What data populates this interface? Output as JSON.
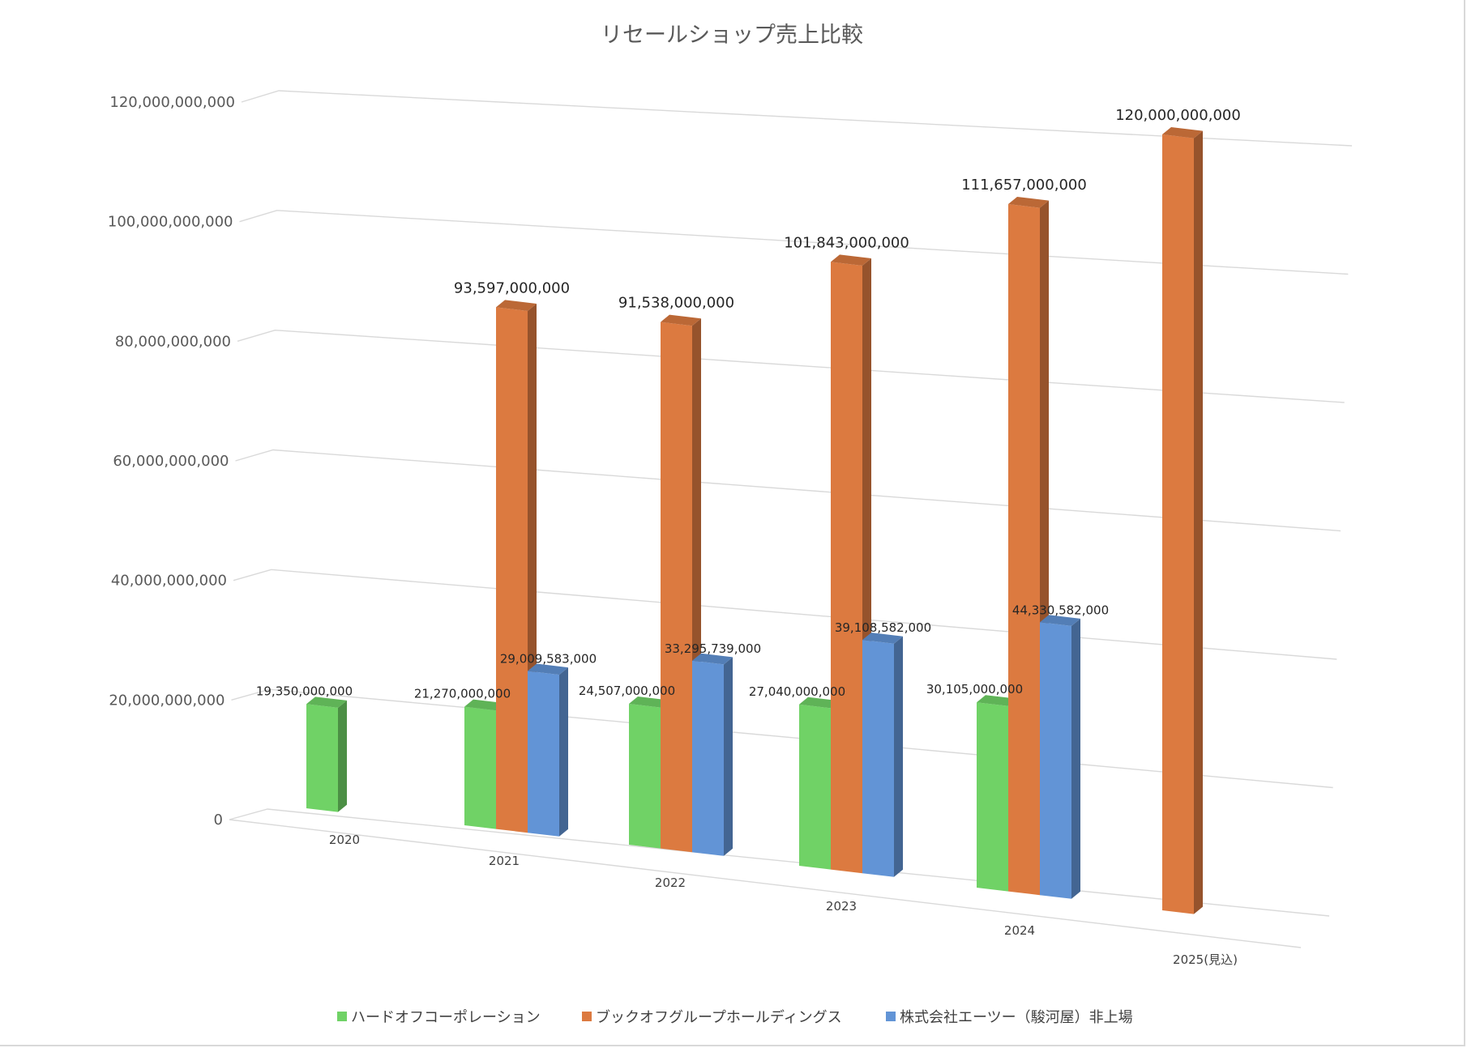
{
  "chart_data": {
    "type": "bar",
    "title": "リセールショップ売上比較",
    "xlabel": "",
    "ylabel": "",
    "ylim": [
      0,
      120000000000
    ],
    "yticks": [
      "0",
      "20,000,000,000",
      "40,000,000,000",
      "60,000,000,000",
      "80,000,000,000",
      "100,000,000,000",
      "120,000,000,000"
    ],
    "categories": [
      "2020",
      "2021",
      "2022",
      "2023",
      "2024",
      "2025(見込)"
    ],
    "series": [
      {
        "name": "ハードオフコーポレーション",
        "color": "#70d266",
        "values": [
          19350000000,
          21270000000,
          24507000000,
          27040000000,
          30105000000,
          null
        ],
        "labels": [
          "19,350,000,000",
          "21,270,000,000",
          "24,507,000,000",
          "27,040,000,000",
          "30,105,000,000",
          ""
        ]
      },
      {
        "name": "ブックオフグループホールディングス",
        "color": "#dc7a40",
        "values": [
          null,
          93597000000,
          91538000000,
          101843000000,
          111657000000,
          120000000000
        ],
        "labels": [
          "",
          "93,597,000,000",
          "91,538,000,000",
          "101,843,000,000",
          "111,657,000,000",
          "120,000,000,000"
        ]
      },
      {
        "name": "株式会社エーツー（駿河屋）非上場",
        "color": "#6294d6",
        "values": [
          null,
          29009583000,
          33295739000,
          39108582000,
          44330582000,
          null
        ],
        "labels": [
          "",
          "29,009,583,000",
          "33,295,739,000",
          "39,108,582,000",
          "44,330,582,000",
          ""
        ]
      }
    ],
    "legend": "bottom",
    "grid": true
  }
}
